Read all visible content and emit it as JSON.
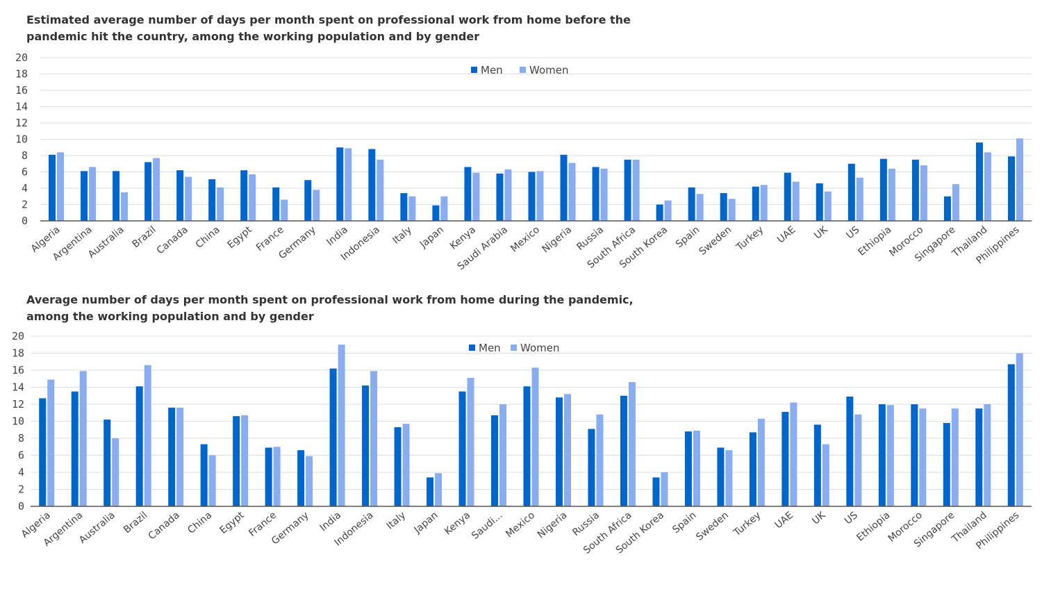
{
  "colors": {
    "men": "#0066cc",
    "women": "#8aacf0",
    "grid": "#dddddd",
    "axis": "#555555"
  },
  "chart_data": [
    {
      "type": "bar",
      "title_lines": [
        "Estimated average number of days per month spent on professional work from home before the",
        "pandemic hit the country, among the working population and by gender"
      ],
      "xlabel": "",
      "ylabel": "",
      "ylim": [
        0,
        20
      ],
      "yticks": [
        "0",
        "2",
        "4",
        "6",
        "8",
        "10",
        "12",
        "14",
        "16",
        "18",
        "20"
      ],
      "grid": true,
      "legend": "top-center",
      "categories": [
        "Algeria",
        "Argentina",
        "Australia",
        "Brazil",
        "Canada",
        "China",
        "Egypt",
        "France",
        "Germany",
        "India",
        "Indonesia",
        "Italy",
        "Japan",
        "Kenya",
        "Saudi Arabia",
        "Mexico",
        "Nigeria",
        "Russia",
        "South Africa",
        "South Korea",
        "Spain",
        "Sweden",
        "Turkey",
        "UAE",
        "UK",
        "US",
        "Ethiopia",
        "Morocco",
        "Singapore",
        "Thailand",
        "Philippines"
      ],
      "series": [
        {
          "name": "Men",
          "values": [
            8.1,
            6.1,
            6.1,
            7.2,
            6.2,
            5.1,
            6.2,
            4.1,
            5.0,
            9.0,
            8.8,
            3.4,
            1.9,
            6.6,
            5.8,
            6.0,
            8.1,
            6.6,
            7.5,
            2.0,
            4.1,
            3.4,
            4.2,
            5.9,
            4.6,
            7.0,
            7.6,
            7.5,
            3.0,
            9.6,
            7.9
          ]
        },
        {
          "name": "Women",
          "values": [
            8.4,
            6.6,
            3.5,
            7.7,
            5.4,
            4.1,
            5.7,
            2.6,
            3.8,
            8.9,
            7.5,
            3.0,
            3.0,
            5.9,
            6.3,
            6.1,
            7.1,
            6.4,
            7.5,
            2.5,
            3.3,
            2.7,
            4.4,
            4.8,
            3.6,
            5.3,
            6.4,
            6.8,
            4.5,
            8.4,
            10.1
          ]
        }
      ]
    },
    {
      "type": "bar",
      "title_lines": [
        "Average number of days per month spent on professional work from home during the pandemic,",
        "among the working population and by gender"
      ],
      "xlabel": "",
      "ylabel": "",
      "ylim": [
        0,
        20
      ],
      "yticks": [
        "0",
        "2",
        "4",
        "6",
        "8",
        "10",
        "12",
        "14",
        "16",
        "18",
        "20"
      ],
      "grid": true,
      "legend": "top-center",
      "categories": [
        "Algeria",
        "Argentina",
        "Australia",
        "Brazil",
        "Canada",
        "China",
        "Egypt",
        "France",
        "Germany",
        "India",
        "Indonesia",
        "Italy",
        "Japan",
        "Kenya",
        "Saudi...",
        "Mexico",
        "Nigeria",
        "Russia",
        "South Africa",
        "South Korea",
        "Spain",
        "Sweden",
        "Turkey",
        "UAE",
        "UK",
        "US",
        "Ethiopia",
        "Morocco",
        "Singapore",
        "Thailand",
        "Philippines"
      ],
      "series": [
        {
          "name": "Men",
          "values": [
            12.7,
            13.5,
            10.2,
            14.1,
            11.6,
            7.3,
            10.6,
            6.9,
            6.6,
            16.2,
            14.2,
            9.3,
            3.4,
            13.5,
            10.7,
            14.1,
            12.8,
            9.1,
            13.0,
            3.4,
            8.8,
            6.9,
            8.7,
            11.1,
            9.6,
            12.9,
            12.0,
            12.0,
            9.8,
            11.5,
            16.7
          ]
        },
        {
          "name": "Women",
          "values": [
            14.9,
            15.9,
            8.0,
            16.6,
            11.6,
            6.0,
            10.7,
            7.0,
            5.9,
            19.0,
            15.9,
            9.7,
            3.9,
            15.1,
            12.0,
            16.3,
            13.2,
            10.8,
            14.6,
            4.0,
            8.9,
            6.6,
            10.3,
            12.2,
            7.3,
            10.8,
            11.9,
            11.5,
            11.5,
            12.0,
            18.0
          ]
        }
      ]
    }
  ]
}
